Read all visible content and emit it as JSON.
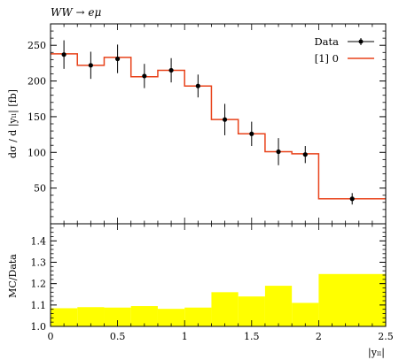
{
  "chart_data": [
    {
      "type": "line",
      "title": "WW → eμ",
      "ylabel": "dσ / d |yₗₗ| [fb]",
      "xlabel": "|yₗₗ|",
      "xlim": [
        0,
        2.5
      ],
      "ylim": [
        0,
        280
      ],
      "y_ticks": [
        "50",
        "100",
        "150",
        "200",
        "250"
      ],
      "x_tick_values": [
        0,
        0.5,
        1,
        1.5,
        2,
        2.5
      ],
      "grid": false,
      "legend_position": "top-right",
      "legend": [
        {
          "label": "Data",
          "marker": "black-dot-errorbar"
        },
        {
          "label": "[1] 0",
          "marker": "red-line"
        }
      ],
      "bin_edges": [
        0,
        0.2,
        0.4,
        0.6,
        0.8,
        1.0,
        1.2,
        1.4,
        1.6,
        1.8,
        2.0,
        2.5
      ],
      "series": [
        {
          "name": "Data",
          "type": "scatter",
          "color": "#000000",
          "x": [
            0.1,
            0.3,
            0.5,
            0.7,
            0.9,
            1.1,
            1.3,
            1.5,
            1.7,
            1.9,
            2.25
          ],
          "values": [
            237,
            222,
            231,
            207,
            215,
            193,
            146,
            126,
            101,
            97,
            35
          ],
          "errors": [
            20,
            19,
            20,
            17,
            17,
            16,
            22,
            17,
            19,
            12,
            8
          ]
        },
        {
          "name": "[1] 0",
          "type": "step",
          "color": "#e8421a",
          "values": [
            238,
            222,
            233,
            206,
            215,
            193,
            146,
            126,
            101,
            98,
            35
          ]
        }
      ]
    },
    {
      "type": "bar",
      "ylabel": "MC/Data",
      "xlabel": "|yₗₗ|",
      "xlim": [
        0,
        2.5
      ],
      "ylim": [
        1.0,
        1.48
      ],
      "y_ticks": [
        "1.0",
        "1.1",
        "1.2",
        "1.3",
        "1.4"
      ],
      "x_ticks": [
        "0",
        "0.5",
        "1",
        "1.5",
        "2",
        "2.5"
      ],
      "bin_edges": [
        0,
        0.2,
        0.4,
        0.6,
        0.8,
        1.0,
        1.2,
        1.4,
        1.6,
        1.8,
        2.0,
        2.5
      ],
      "series": [
        {
          "name": "MC/Data",
          "color": "#ffff00",
          "values": [
            1.085,
            1.09,
            1.088,
            1.095,
            1.082,
            1.088,
            1.16,
            1.14,
            1.19,
            1.11,
            1.245
          ]
        }
      ]
    }
  ]
}
